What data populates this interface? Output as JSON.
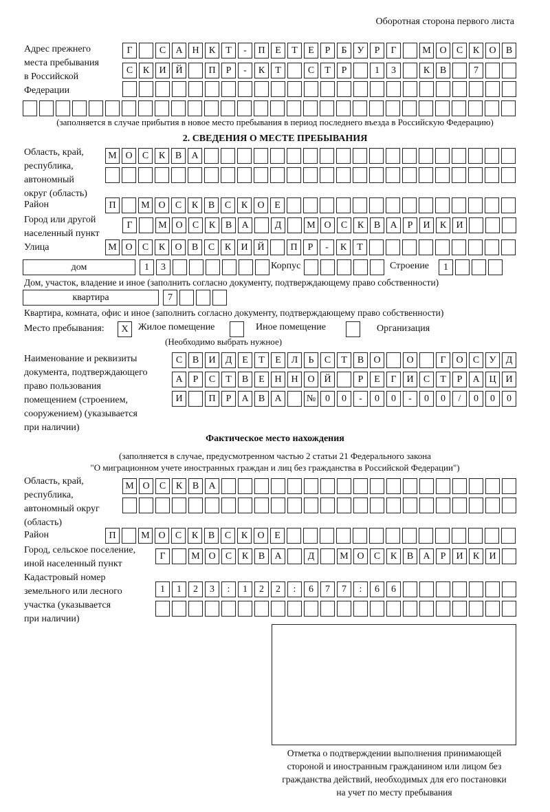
{
  "header": {
    "page_side": "Оборотная сторона первого листа"
  },
  "previous_address": {
    "label": "Адрес прежнего\nместа пребывания\nв Российской\nФедерации",
    "rows": [
      [
        "Г",
        "",
        "С",
        "А",
        "Н",
        "К",
        "Т",
        "-",
        "П",
        "Е",
        "Т",
        "Е",
        "Р",
        "Б",
        "У",
        "Р",
        "Г",
        "",
        "М",
        "О",
        "С",
        "К",
        "О",
        "В"
      ],
      [
        "С",
        "К",
        "И",
        "Й",
        "",
        "П",
        "Р",
        "-",
        "К",
        "Т",
        "",
        "С",
        "Т",
        "Р",
        "",
        "1",
        "3",
        "",
        "К",
        "В",
        "",
        "7",
        "",
        ""
      ],
      [
        "",
        "",
        "",
        "",
        "",
        "",
        "",
        "",
        "",
        "",
        "",
        "",
        "",
        "",
        "",
        "",
        "",
        "",
        "",
        "",
        "",
        "",
        "",
        ""
      ],
      [
        "",
        "",
        "",
        "",
        "",
        "",
        "",
        "",
        "",
        "",
        "",
        "",
        "",
        "",
        "",
        "",
        "",
        "",
        "",
        "",
        "",
        "",
        "",
        "",
        "",
        "",
        "",
        "",
        "",
        ""
      ]
    ],
    "note": "(заполняется в случае прибытия в новое место пребывания в период последнего въезда в Российскую Федерацию)"
  },
  "section2": {
    "title": "2. СВЕДЕНИЯ О МЕСТЕ ПРЕБЫВАНИЯ",
    "region_label": "Область, край,\nреспублика,\nавтономный\nокруг (область)",
    "region_rows": [
      [
        "М",
        "О",
        "С",
        "К",
        "В",
        "А",
        "",
        "",
        "",
        "",
        "",
        "",
        "",
        "",
        "",
        "",
        "",
        "",
        "",
        "",
        "",
        "",
        "",
        "",
        ""
      ],
      [
        "",
        "",
        "",
        "",
        "",
        "",
        "",
        "",
        "",
        "",
        "",
        "",
        "",
        "",
        "",
        "",
        "",
        "",
        "",
        "",
        "",
        "",
        "",
        "",
        ""
      ]
    ],
    "district_label": "Район",
    "district": [
      "П",
      "",
      "М",
      "О",
      "С",
      "К",
      "В",
      "С",
      "К",
      "О",
      "Е",
      "",
      "",
      "",
      "",
      "",
      "",
      "",
      "",
      "",
      "",
      "",
      "",
      "",
      ""
    ],
    "city_label": "Город или другой\nнаселенный пункт",
    "city": [
      "Г",
      "",
      "М",
      "О",
      "С",
      "К",
      "В",
      "А",
      "",
      "Д",
      "",
      "М",
      "О",
      "С",
      "К",
      "В",
      "А",
      "Р",
      "И",
      "К",
      "И",
      "",
      "",
      ""
    ],
    "street_label": "Улица",
    "street": [
      "М",
      "О",
      "С",
      "К",
      "О",
      "В",
      "С",
      "К",
      "И",
      "Й",
      "",
      "П",
      "Р",
      "-",
      "К",
      "Т",
      "",
      "",
      "",
      "",
      "",
      "",
      "",
      "",
      ""
    ],
    "house_type": "дом",
    "house": [
      "1",
      "3",
      "",
      "",
      "",
      "",
      "",
      ""
    ],
    "building_label": "Корпус",
    "building": [
      "",
      "",
      "",
      "",
      ""
    ],
    "structure_label": "Строение",
    "structure": [
      "1",
      "",
      "",
      ""
    ],
    "house_note": "Дом, участок, владение и иное (заполнить согласно документу, подтверждающему право собственности)",
    "apartment_type": "квартира",
    "apartment": [
      "7",
      "",
      "",
      ""
    ],
    "apartment_note": "Квартира, комната, офис и иное (заполнить согласно документу, подтверждающему право собственности)",
    "stay_place_label": "Место пребывания:",
    "stay_options": [
      {
        "label": "Жилое помещение",
        "mark": "X"
      },
      {
        "label": "Иное помещение",
        "mark": ""
      },
      {
        "label": "Организация",
        "mark": ""
      }
    ],
    "stay_note": "(Необходимо выбрать нужное)",
    "document_label": "Наименование и реквизиты\nдокумента, подтверждающего\nправо пользования\nпомещением (строением,\nсооружением) (указывается\nпри наличии)",
    "document_rows": [
      [
        "С",
        "В",
        "И",
        "Д",
        "Е",
        "Т",
        "Е",
        "Л",
        "Ь",
        "С",
        "Т",
        "В",
        "О",
        "",
        "О",
        "",
        "Г",
        "О",
        "С",
        "У",
        "Д"
      ],
      [
        "А",
        "Р",
        "С",
        "Т",
        "В",
        "Е",
        "Н",
        "Н",
        "О",
        "Й",
        "",
        "Р",
        "Е",
        "Г",
        "И",
        "С",
        "Т",
        "Р",
        "А",
        "Ц",
        "И"
      ],
      [
        "И",
        "",
        "П",
        "Р",
        "А",
        "В",
        "А",
        "",
        "№",
        "0",
        "0",
        "-",
        "0",
        "0",
        "-",
        "0",
        "0",
        "/",
        "0",
        "0",
        "0"
      ]
    ]
  },
  "actual_location": {
    "title": "Фактическое место нахождения",
    "note1": "(заполняется в случае, предусмотренном частью 2 статьи 21 Федерального закона",
    "note2": "\"О миграционном учете иностранных граждан и лиц без гражданства в Российской Федерации\")",
    "region_label": "Область, край,\nреспублика,\nавтономный округ\n(область)",
    "region_rows": [
      [
        "М",
        "О",
        "С",
        "К",
        "В",
        "А",
        "",
        "",
        "",
        "",
        "",
        "",
        "",
        "",
        "",
        "",
        "",
        "",
        "",
        "",
        "",
        "",
        "",
        ""
      ],
      [
        "",
        "",
        "",
        "",
        "",
        "",
        "",
        "",
        "",
        "",
        "",
        "",
        "",
        "",
        "",
        "",
        "",
        "",
        "",
        "",
        "",
        "",
        "",
        ""
      ]
    ],
    "district_label": "Район",
    "district": [
      "П",
      "",
      "М",
      "О",
      "С",
      "К",
      "В",
      "С",
      "К",
      "О",
      "Е",
      "",
      "",
      "",
      "",
      "",
      "",
      "",
      "",
      "",
      "",
      "",
      "",
      "",
      ""
    ],
    "city_label": "Город, сельское поселение,\nиной населенный пункт",
    "city": [
      "Г",
      "",
      "М",
      "О",
      "С",
      "К",
      "В",
      "А",
      "",
      "Д",
      "",
      "М",
      "О",
      "С",
      "К",
      "В",
      "А",
      "Р",
      "И",
      "К",
      "И",
      ""
    ],
    "cadastral_label": "Кадастровый номер\nземельного или лесного\nучастка (указывается\nпри наличии)",
    "cadastral_rows": [
      [
        "1",
        "1",
        "2",
        "3",
        ":",
        "1",
        "2",
        "2",
        ":",
        "6",
        "7",
        "7",
        ":",
        "6",
        "6",
        "",
        "",
        "",
        "",
        "",
        "",
        ""
      ],
      [
        "",
        "",
        "",
        "",
        "",
        "",
        "",
        "",
        "",
        "",
        "",
        "",
        "",
        "",
        "",
        "",
        "",
        "",
        "",
        "",
        "",
        ""
      ]
    ]
  },
  "confirmation": {
    "caption": "Отметка о подтверждении выполнения принимающей\nстороной и иностранным гражданином или лицом без\nгражданства действий, необходимых для его постановки\nна учет по месту пребывания"
  }
}
